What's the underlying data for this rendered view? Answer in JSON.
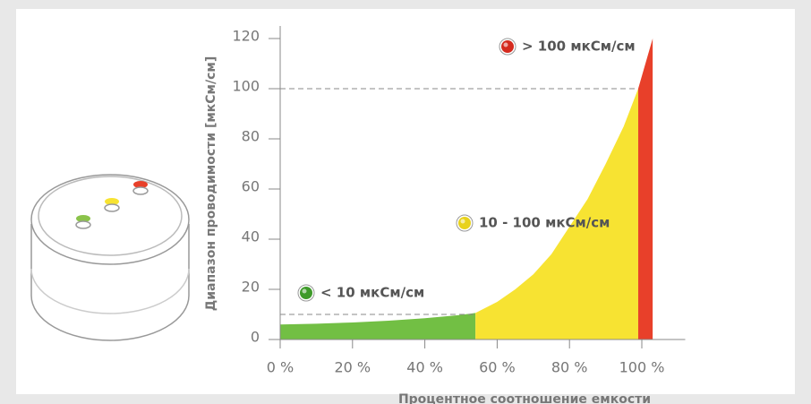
{
  "chart_data": {
    "type": "area",
    "y_label": "Диапазон проводимости [мкСм/см]",
    "x_label": "Процентное соотношение емкости",
    "xlim": [
      0,
      112
    ],
    "ylim": [
      0,
      125
    ],
    "xticks": [
      {
        "value": 0,
        "label": "0 %"
      },
      {
        "value": 20,
        "label": "20 %"
      },
      {
        "value": 40,
        "label": "40 %"
      },
      {
        "value": 60,
        "label": "60 %"
      },
      {
        "value": 80,
        "label": "80 %"
      },
      {
        "value": 100,
        "label": "100 %"
      }
    ],
    "yticks": [
      0,
      20,
      40,
      60,
      80,
      100,
      120
    ],
    "ref_lines": [
      100,
      10
    ],
    "series": [
      {
        "color": "#72bf44",
        "x": [
          0,
          10,
          20,
          30,
          40,
          50,
          54
        ],
        "values": [
          6,
          6.3,
          6.8,
          7.5,
          8.5,
          9.8,
          10.6
        ]
      },
      {
        "color": "#f7e332",
        "x": [
          54,
          60,
          65,
          70,
          75,
          80,
          85,
          90,
          95,
          99
        ],
        "values": [
          10.6,
          15,
          20,
          26,
          34,
          45,
          56,
          70,
          85,
          100
        ]
      },
      {
        "color": "#e8402a",
        "x": [
          99,
          103
        ],
        "values": [
          100,
          120
        ]
      }
    ],
    "annotations": [
      {
        "text": "> 100 мкСм/см",
        "color": "#d42a1e"
      },
      {
        "text": "10 - 100 мкСм/см",
        "color": "#e8d21c"
      },
      {
        "text": "< 10 мкСм/см",
        "color": "#3e9a2a"
      }
    ]
  }
}
